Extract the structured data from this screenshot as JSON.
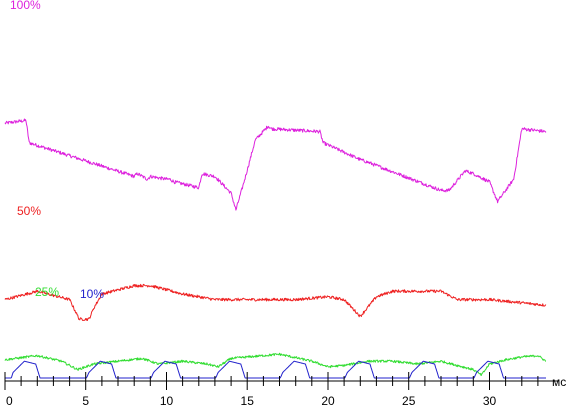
{
  "chart_data": {
    "type": "line",
    "x_unit": "мс",
    "xlim": [
      0,
      33.5
    ],
    "x_ticks": [
      "0",
      "5",
      "10",
      "15",
      "20",
      "25",
      "30"
    ],
    "grid": false,
    "series": [
      {
        "name": "100%",
        "color": "#dd22dd",
        "noise": 0.6,
        "x": [
          0,
          1.3,
          1.5,
          8.0,
          8.2,
          8.8,
          9.0,
          10.0,
          10.2,
          10.5,
          12.0,
          12.2,
          13.0,
          14.0,
          14.3,
          14.8,
          15.5,
          16.3,
          16.5,
          19.5,
          19.7,
          22.0,
          22.5,
          27.0,
          27.5,
          28.5,
          29.0,
          30.0,
          30.5,
          31.5,
          32.0,
          33.5
        ],
        "y": [
          91,
          92,
          84,
          72,
          73,
          71,
          72,
          71,
          71,
          70,
          68,
          73,
          72,
          66,
          60,
          70,
          85,
          90,
          89,
          88,
          84,
          78,
          77,
          67,
          67,
          74,
          73,
          70,
          63,
          71,
          89,
          88
        ]
      },
      {
        "name": "50%",
        "color": "#ee2222",
        "noise": 0.5,
        "x": [
          0,
          2.0,
          4.0,
          4.6,
          5.2,
          5.5,
          6.0,
          8.0,
          9.0,
          11.0,
          13.0,
          15.0,
          18.0,
          20.0,
          21.0,
          22.0,
          23.0,
          24.0,
          27.0,
          28.0,
          30.0,
          33.5
        ],
        "y": [
          28,
          31,
          28,
          21,
          21,
          25,
          30,
          33,
          33,
          30,
          28,
          28,
          28,
          29,
          28,
          22,
          29,
          31,
          31,
          28,
          28,
          26
        ]
      },
      {
        "name": "25%",
        "color": "#33dd33",
        "noise": 0.4,
        "x": [
          0,
          2.0,
          3.5,
          4.5,
          5.5,
          8.5,
          9.5,
          11.0,
          12.5,
          13.2,
          14.0,
          16.0,
          17.0,
          19.0,
          20.0,
          21.0,
          22.5,
          24.0,
          25.5,
          27.0,
          28.0,
          29.0,
          29.5,
          30.0,
          31.0,
          32.0,
          33.0,
          33.5
        ],
        "y": [
          6.5,
          8,
          6,
          3,
          5,
          7,
          5,
          6,
          5,
          4,
          7,
          8,
          8.5,
          6,
          4,
          4.5,
          6,
          6,
          5,
          6,
          4.5,
          3,
          1,
          5,
          6.5,
          7.5,
          8,
          6
        ]
      },
      {
        "name": "10%",
        "color": "#2222cc",
        "noise": 0,
        "x": [
          0,
          0.5,
          1.2,
          1.9,
          2.6,
          3.3,
          4.0,
          4.5,
          5.2,
          5.9,
          6.6,
          7.3,
          8.0,
          8.5,
          9.2,
          9.9,
          10.6,
          11.3,
          12.0,
          12.5,
          13.2,
          13.9,
          14.6,
          15.3,
          16.0,
          16.5,
          17.2,
          17.9,
          18.6,
          19.3,
          20.0,
          20.5,
          21.2,
          21.9,
          22.6,
          23.3,
          24.0,
          24.5,
          25.2,
          25.9,
          26.6,
          27.3,
          28.0,
          28.5,
          29.2,
          29.9,
          30.6,
          31.3,
          32.0,
          32.5,
          33.0,
          33.5
        ],
        "y": [
          -7,
          2,
          6,
          5,
          -8,
          -25,
          -30,
          -7,
          2,
          6,
          5,
          -8,
          -25,
          -7,
          2,
          6,
          5,
          -8,
          -25,
          -7,
          2,
          6,
          5,
          -8,
          -25,
          -7,
          2,
          6,
          5,
          -8,
          -25,
          -7,
          2,
          6,
          5,
          -8,
          -25,
          -7,
          2,
          6,
          5,
          -8,
          -25,
          -7,
          2,
          6,
          5,
          -8,
          -25,
          -20,
          -25,
          -25
        ]
      }
    ]
  }
}
